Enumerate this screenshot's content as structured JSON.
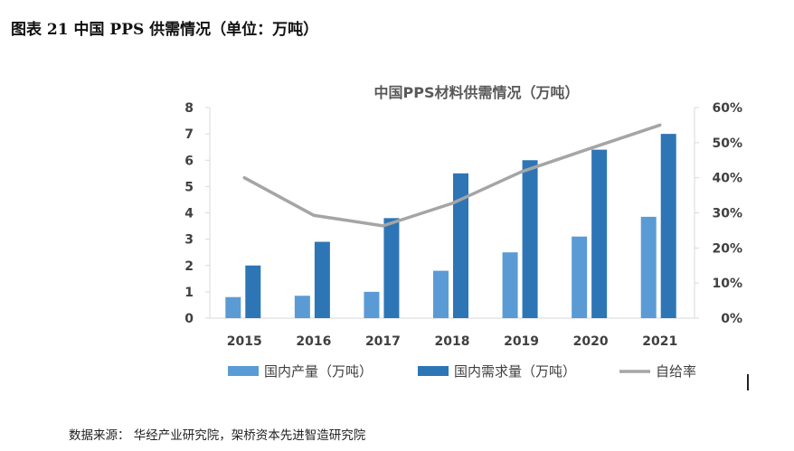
{
  "header": {
    "figure_title": "图表 21 中国 PPS 供需情况（单位：万吨）"
  },
  "footer": {
    "source": "数据来源： 华经产业研究院，架桥资本先进智造研究院"
  },
  "colors": {
    "production": "#5b9bd5",
    "demand": "#2e75b6",
    "ratio": "#a5a5a5",
    "axis_text": "#404040",
    "title_text": "#595959",
    "axis_line": "#d9d9d9"
  },
  "chart_data": {
    "type": "bar",
    "title": "中国PPS材料供需情况（万吨）",
    "categories": [
      "2015",
      "2016",
      "2017",
      "2018",
      "2019",
      "2020",
      "2021"
    ],
    "series": [
      {
        "name": "国内产量（万吨）",
        "type": "bar",
        "axis": "left",
        "values": [
          0.8,
          0.85,
          1.0,
          1.8,
          2.5,
          3.1,
          3.85
        ]
      },
      {
        "name": "国内需求量（万吨）",
        "type": "bar",
        "axis": "left",
        "values": [
          2.0,
          2.9,
          3.8,
          5.5,
          6.0,
          6.4,
          7.0
        ]
      },
      {
        "name": "自给率",
        "type": "line",
        "axis": "right",
        "values": [
          0.4,
          0.293,
          0.263,
          0.327,
          0.417,
          0.484,
          0.55
        ]
      }
    ],
    "ylim": [
      0,
      8
    ],
    "y_ticks": [
      "0",
      "1",
      "2",
      "3",
      "4",
      "5",
      "6",
      "7",
      "8"
    ],
    "y2lim": [
      0,
      0.6
    ],
    "y2_ticks": [
      "0%",
      "10%",
      "20%",
      "30%",
      "40%",
      "50%",
      "60%"
    ],
    "legend": "bottom",
    "grid": false
  }
}
